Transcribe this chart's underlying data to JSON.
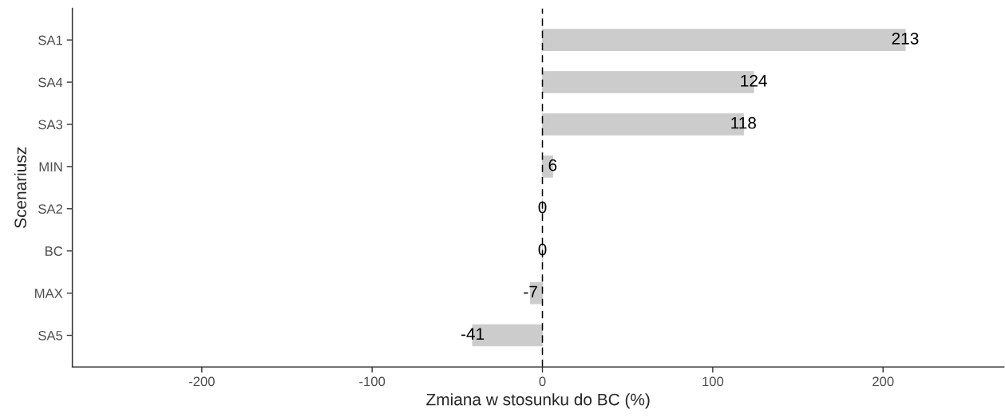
{
  "chart_data": {
    "type": "bar",
    "orientation": "horizontal",
    "xlabel": "Zmiana w stosunku do BC (%)",
    "ylabel": "Scenariusz",
    "categories": [
      "SA1",
      "SA4",
      "SA3",
      "MIN",
      "SA2",
      "BC",
      "MAX",
      "SA5"
    ],
    "values": [
      213,
      124,
      118,
      6,
      0,
      0,
      -7,
      -41
    ],
    "color": "#cccccc",
    "data_labels": true,
    "xlim": [
      -276,
      271
    ],
    "xticks": [
      -200,
      -100,
      0,
      100,
      200
    ],
    "ref_lines": [
      {
        "axis": "x",
        "value": 0,
        "color": "#000000",
        "line_style": "dashed"
      }
    ],
    "grid": false,
    "legend": false
  }
}
